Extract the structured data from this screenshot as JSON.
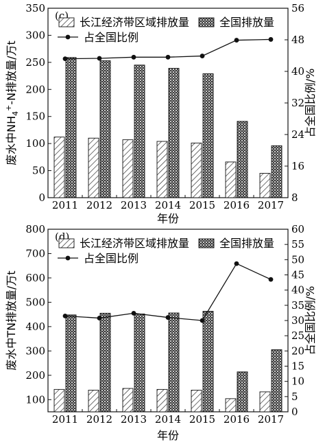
{
  "chart_data": [
    {
      "type": "bar",
      "panel_label": "(c)",
      "categories": [
        "2011",
        "2012",
        "2013",
        "2014",
        "2015",
        "2016",
        "2017"
      ],
      "ylabel_prefix": "废水中NH",
      "ylabel_sub": "4",
      "ylabel_sup": "+",
      "ylabel_suffix": "-N排放量/万t",
      "y2label": "占全国比例/%",
      "xlabel": "年份",
      "ylim": [
        0,
        350
      ],
      "yticks": [
        0,
        50,
        100,
        150,
        200,
        250,
        300,
        350
      ],
      "y2lim": [
        8,
        56
      ],
      "y2ticks": [
        8,
        16,
        24,
        32,
        40,
        48,
        56
      ],
      "series": [
        {
          "name": "长江经济带区域排放量",
          "kind": "bar",
          "pattern": "hatch",
          "values": [
            112,
            110,
            107,
            104,
            101,
            66,
            45
          ]
        },
        {
          "name": "全国排放量",
          "kind": "bar",
          "pattern": "cross",
          "values": [
            259,
            253,
            245,
            239,
            229,
            141,
            96
          ]
        },
        {
          "name": "占全国比例",
          "kind": "line",
          "axis": "right",
          "values": [
            43.2,
            43.3,
            43.6,
            43.6,
            43.9,
            47.9,
            48.1
          ]
        }
      ]
    },
    {
      "type": "bar",
      "panel_label": "(d)",
      "categories": [
        "2011",
        "2012",
        "2013",
        "2014",
        "2015",
        "2016",
        "2017"
      ],
      "ylabel": "废水中TN排放量/万t",
      "y2label": "占全国比例/%",
      "xlabel": "年份",
      "ylim": [
        50,
        800
      ],
      "yticks": [
        100,
        200,
        300,
        400,
        500,
        600,
        700,
        800
      ],
      "y2lim": [
        0,
        60
      ],
      "y2ticks": [
        0,
        5,
        10,
        15,
        20,
        25,
        30,
        35,
        40,
        45,
        50,
        55,
        60
      ],
      "series": [
        {
          "name": "长江经济带区域排放量",
          "kind": "bar",
          "pattern": "hatch",
          "values": [
            142,
            139,
            146,
            142,
            139,
            104,
            132
          ]
        },
        {
          "name": "全国排放量",
          "kind": "bar",
          "pattern": "cross",
          "values": [
            448,
            455,
            452,
            456,
            463,
            214,
            305
          ]
        },
        {
          "name": "占全国比例",
          "kind": "line",
          "axis": "right",
          "values": [
            31.5,
            30.8,
            32.4,
            31.0,
            30.0,
            48.7,
            43.5
          ]
        }
      ]
    }
  ]
}
